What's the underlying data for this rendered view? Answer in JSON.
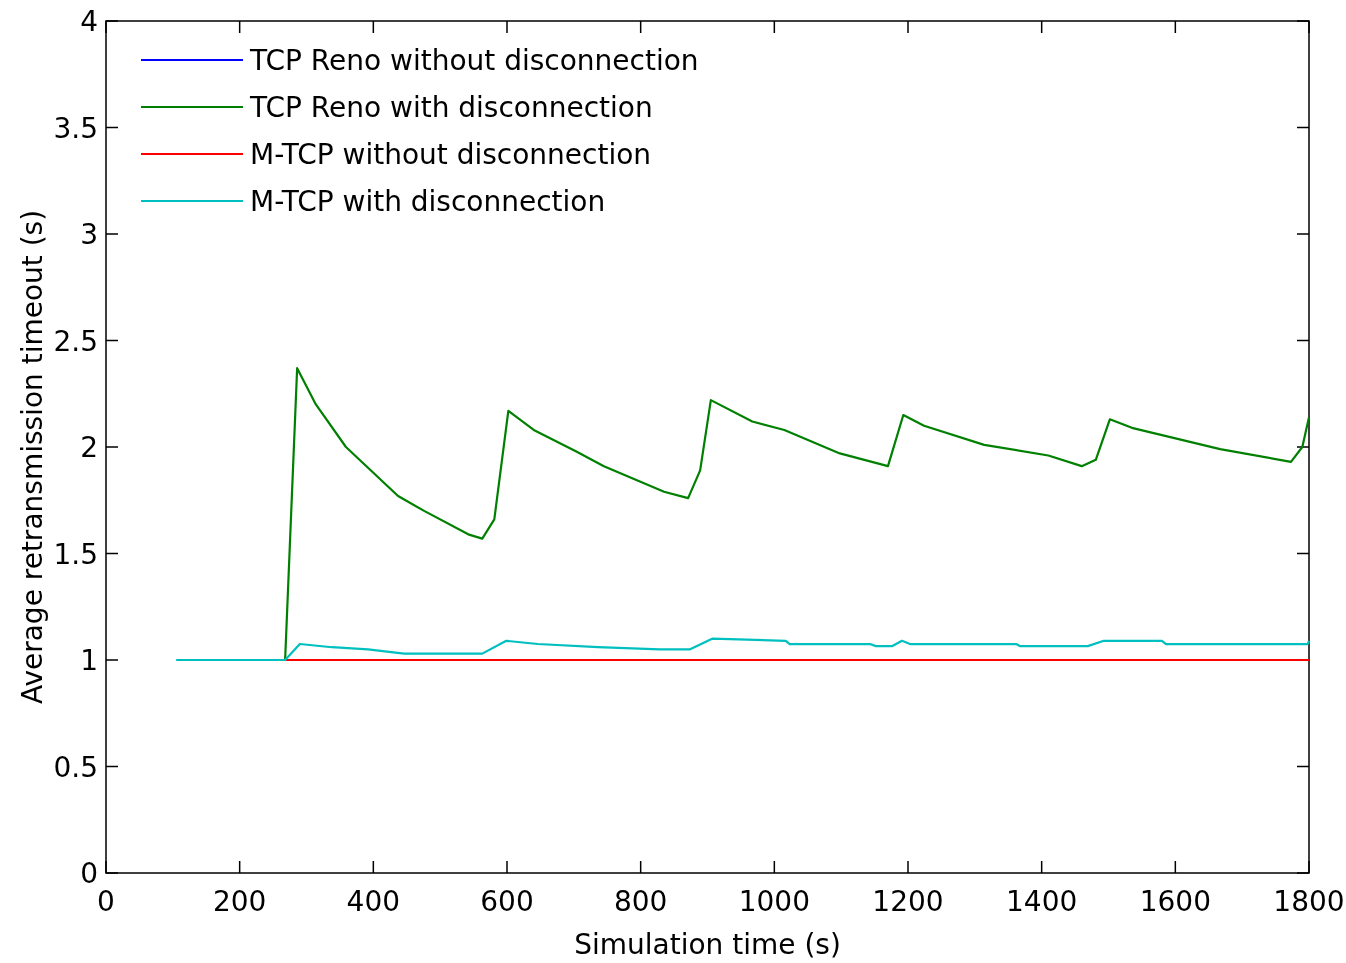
{
  "chart_data": {
    "type": "line",
    "xlabel": "Simulation time (s)",
    "ylabel": "Average retransmission timeout (s)",
    "xlim": [
      0,
      1800
    ],
    "xticks": [
      0,
      200,
      400,
      600,
      800,
      1000,
      1200,
      1400,
      1600,
      1800
    ],
    "ylim": [
      0,
      4
    ],
    "yticks": [
      0,
      0.5,
      1,
      1.5,
      2,
      2.5,
      3,
      3.5,
      4
    ],
    "grid": false,
    "legend": "top left",
    "line_style": "solid",
    "marker": "none",
    "series": [
      {
        "name": "TCP Reno without disconnection",
        "color": "#0000ff"
      },
      {
        "name": "TCP Reno with disconnection",
        "color": "#008000",
        "x": [
          268,
          286,
          314,
          359,
          437,
          476,
          542,
          563,
          581,
          602,
          640,
          703,
          745,
          835,
          871,
          889,
          905,
          967,
          1015,
          1098,
          1170,
          1193,
          1224,
          1314,
          1410,
          1460,
          1481,
          1502,
          1535,
          1667,
          1773,
          1790,
          1800
        ],
        "values": [
          1.0,
          2.37,
          2.2,
          2.0,
          1.77,
          1.7,
          1.59,
          1.57,
          1.66,
          2.17,
          2.08,
          1.98,
          1.91,
          1.79,
          1.76,
          1.89,
          2.22,
          2.12,
          2.08,
          1.97,
          1.91,
          2.15,
          2.1,
          2.01,
          1.96,
          1.91,
          1.94,
          2.13,
          2.09,
          1.99,
          1.93,
          2.0,
          2.14
        ]
      },
      {
        "name": "M-TCP without disconnection",
        "color": "#ff0000",
        "x": [
          268,
          1800
        ],
        "values": [
          1,
          1
        ]
      },
      {
        "name": "M-TCP with disconnection",
        "color": "#00bfbf",
        "x": [
          105,
          268,
          290,
          338,
          392,
          446,
          563,
          599,
          646,
          736,
          829,
          874,
          907,
          1017,
          1023,
          1143,
          1152,
          1176,
          1191,
          1203,
          1362,
          1368,
          1469,
          1493,
          1580,
          1586,
          1798,
          1800
        ],
        "values": [
          1.0,
          1.0,
          1.075,
          1.06,
          1.05,
          1.03,
          1.03,
          1.09,
          1.075,
          1.06,
          1.05,
          1.05,
          1.1,
          1.09,
          1.075,
          1.075,
          1.065,
          1.065,
          1.09,
          1.075,
          1.075,
          1.065,
          1.065,
          1.09,
          1.09,
          1.075,
          1.075,
          1.09
        ]
      }
    ]
  }
}
